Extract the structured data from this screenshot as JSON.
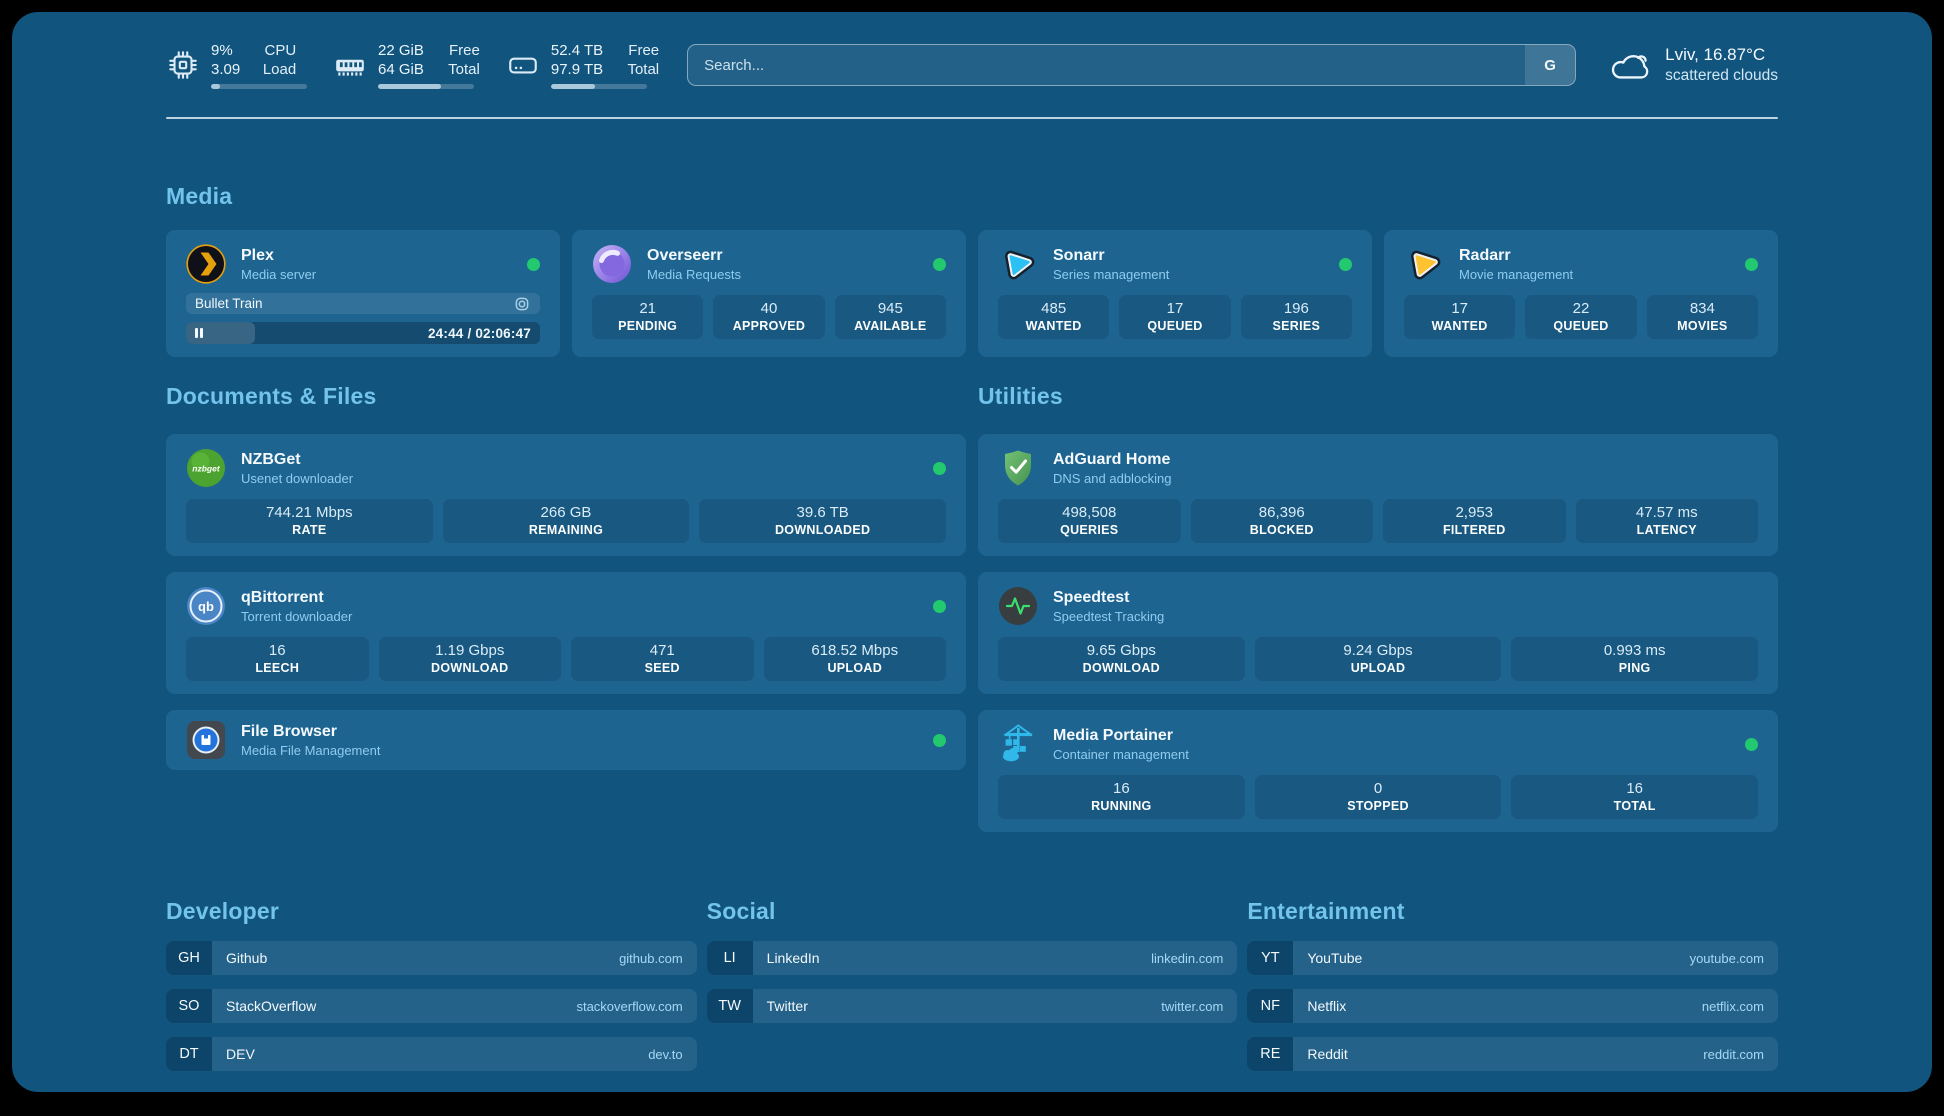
{
  "header": {
    "system_stats": [
      {
        "icon": "cpu-icon",
        "value_top": "9%",
        "value_bottom": "3.09",
        "label_top": "CPU",
        "label_bottom": "Load",
        "progress_pct": 9
      },
      {
        "icon": "ram-icon",
        "value_top": "22 GiB",
        "value_bottom": "64 GiB",
        "label_top": "Free",
        "label_bottom": "Total",
        "progress_pct": 66
      },
      {
        "icon": "disk-icon",
        "value_top": "52.4 TB",
        "value_bottom": "97.9 TB",
        "label_top": "Free",
        "label_bottom": "Total",
        "progress_pct": 46
      }
    ],
    "search": {
      "placeholder": "Search...",
      "provider_button_label": "G"
    },
    "weather": {
      "icon": "cloud-icon",
      "title": "Lviv, 16.87°C",
      "subtitle": "scattered clouds"
    }
  },
  "sections": {
    "media": {
      "title": "Media",
      "apps": [
        {
          "name": "Plex",
          "subtitle": "Media server",
          "online": true,
          "now_playing": {
            "title": "Bullet Train",
            "time": "24:44 / 02:06:47",
            "progress_pct": 19.5
          }
        },
        {
          "name": "Overseerr",
          "subtitle": "Media Requests",
          "online": true,
          "stats": [
            {
              "value": "21",
              "label": "PENDING"
            },
            {
              "value": "40",
              "label": "APPROVED"
            },
            {
              "value": "945",
              "label": "AVAILABLE"
            }
          ]
        },
        {
          "name": "Sonarr",
          "subtitle": "Series management",
          "online": true,
          "stats": [
            {
              "value": "485",
              "label": "WANTED"
            },
            {
              "value": "17",
              "label": "QUEUED"
            },
            {
              "value": "196",
              "label": "SERIES"
            }
          ]
        },
        {
          "name": "Radarr",
          "subtitle": "Movie management",
          "online": true,
          "stats": [
            {
              "value": "17",
              "label": "WANTED"
            },
            {
              "value": "22",
              "label": "QUEUED"
            },
            {
              "value": "834",
              "label": "MOVIES"
            }
          ]
        }
      ]
    },
    "documents": {
      "title": "Documents & Files",
      "apps": [
        {
          "name": "NZBGet",
          "subtitle": "Usenet downloader",
          "online": true,
          "stats": [
            {
              "value": "744.21 Mbps",
              "label": "RATE"
            },
            {
              "value": "266 GB",
              "label": "REMAINING"
            },
            {
              "value": "39.6 TB",
              "label": "DOWNLOADED"
            }
          ]
        },
        {
          "name": "qBittorrent",
          "subtitle": "Torrent downloader",
          "online": true,
          "stats": [
            {
              "value": "16",
              "label": "LEECH"
            },
            {
              "value": "1.19 Gbps",
              "label": "DOWNLOAD"
            },
            {
              "value": "471",
              "label": "SEED"
            },
            {
              "value": "618.52 Mbps",
              "label": "UPLOAD"
            }
          ]
        },
        {
          "name": "File Browser",
          "subtitle": "Media File Management",
          "online": true
        }
      ]
    },
    "utilities": {
      "title": "Utilities",
      "apps": [
        {
          "name": "AdGuard Home",
          "subtitle": "DNS and adblocking",
          "online": false,
          "stats": [
            {
              "value": "498,508",
              "label": "QUERIES"
            },
            {
              "value": "86,396",
              "label": "BLOCKED"
            },
            {
              "value": "2,953",
              "label": "FILTERED"
            },
            {
              "value": "47.57 ms",
              "label": "LATENCY"
            }
          ]
        },
        {
          "name": "Speedtest",
          "subtitle": "Speedtest Tracking",
          "online": false,
          "stats": [
            {
              "value": "9.65 Gbps",
              "label": "DOWNLOAD"
            },
            {
              "value": "9.24 Gbps",
              "label": "UPLOAD"
            },
            {
              "value": "0.993 ms",
              "label": "PING"
            }
          ]
        },
        {
          "name": "Media Portainer",
          "subtitle": "Container management",
          "online": true,
          "stats": [
            {
              "value": "16",
              "label": "RUNNING"
            },
            {
              "value": "0",
              "label": "STOPPED"
            },
            {
              "value": "16",
              "label": "TOTAL"
            }
          ]
        }
      ]
    },
    "bookmarks": [
      {
        "title": "Developer",
        "links": [
          {
            "abbr": "GH",
            "name": "Github",
            "url": "github.com"
          },
          {
            "abbr": "SO",
            "name": "StackOverflow",
            "url": "stackoverflow.com"
          },
          {
            "abbr": "DT",
            "name": "DEV",
            "url": "dev.to"
          }
        ]
      },
      {
        "title": "Social",
        "links": [
          {
            "abbr": "LI",
            "name": "LinkedIn",
            "url": "linkedin.com"
          },
          {
            "abbr": "TW",
            "name": "Twitter",
            "url": "twitter.com"
          }
        ]
      },
      {
        "title": "Entertainment",
        "links": [
          {
            "abbr": "YT",
            "name": "YouTube",
            "url": "youtube.com"
          },
          {
            "abbr": "NF",
            "name": "Netflix",
            "url": "netflix.com"
          },
          {
            "abbr": "RE",
            "name": "Reddit",
            "url": "reddit.com"
          }
        ]
      }
    ]
  },
  "colors": {
    "background": "#11547e",
    "card": "#1e6490",
    "status_online": "#22c96e",
    "accent_title": "#72c4ec",
    "plex_orange": "#e5a00d",
    "sonarr_cyan": "#2bc1f4",
    "radarr_amber": "#ffc230",
    "nzbget_green": "#4da32f",
    "adguard_green": "#5fb368",
    "qbittorrent_blue": "#4a85c6",
    "speedtest_pulse": "#3ae06e",
    "portainer_blue": "#31b8ea",
    "filebrowser_blue": "#2273dc",
    "overseerr_purple": "#8468e0"
  }
}
